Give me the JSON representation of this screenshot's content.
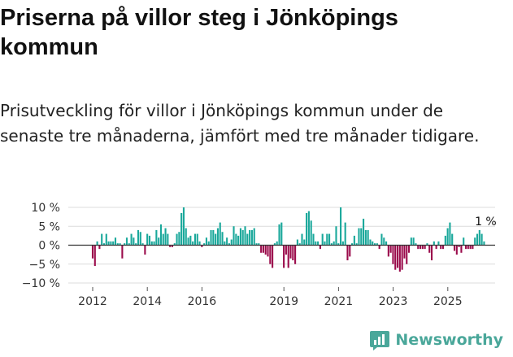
{
  "header": {
    "title": "Priserna på villor steg i Jönköpings kommun",
    "subtitle": "Prisutveckling för villor i Jönköpings kommun under de senaste tre månaderna, jämfört med tre månader tidigare."
  },
  "brand": {
    "name": "Newsworthy",
    "icon": "newsworthy-logo-icon",
    "color": "#4aa79a"
  },
  "colors": {
    "positive": "#1aa89b",
    "negative": "#9b0c4c",
    "zero_line": "#333333",
    "grid": "#dcdcdc"
  },
  "chart_data": {
    "type": "bar",
    "title": "Priserna på villor steg i Jönköpings kommun",
    "xlabel": "",
    "ylabel": "",
    "ylim": [
      -10,
      10
    ],
    "yticks": [
      10,
      5,
      0,
      -5,
      -10
    ],
    "ytick_labels": [
      "10 %",
      "5 %",
      "0 %",
      "−5 %",
      "−10 %"
    ],
    "xticks": [
      2012,
      2014,
      2016,
      2019,
      2021,
      2023,
      2025
    ],
    "xtick_labels": [
      "2012",
      "2014",
      "2016",
      "2019",
      "2021",
      "2023",
      "2025"
    ],
    "x_start": 2012.0,
    "x_step": 0.0833,
    "annotation": {
      "label": "1 %",
      "value": 1
    },
    "values": [
      -3.5,
      -5.5,
      1,
      -1,
      3,
      0.5,
      3,
      1,
      1,
      1,
      2,
      0.5,
      0.5,
      -3.5,
      0.5,
      2,
      0.5,
      3,
      2,
      0.5,
      4,
      3.5,
      0.5,
      -2.5,
      3,
      2.5,
      1,
      1,
      4,
      2,
      5.5,
      3,
      4.5,
      3,
      -0.5,
      -0.5,
      0.5,
      3,
      3.5,
      8.5,
      10,
      4.5,
      2,
      2.5,
      1,
      3,
      3,
      1,
      -0.5,
      0.5,
      2,
      1,
      4,
      4,
      3,
      4.5,
      6,
      3.5,
      1,
      2,
      0.5,
      1.5,
      5,
      3,
      2.5,
      4.5,
      4,
      5,
      3,
      4,
      4,
      4.5,
      0.5,
      0.5,
      -2,
      -2,
      -2.5,
      -3,
      -5,
      -6,
      0.5,
      1,
      5.5,
      6,
      -6,
      -2.5,
      -6,
      -3.5,
      -4,
      -5,
      1.5,
      0.5,
      3,
      1.5,
      8.5,
      9,
      6.5,
      3,
      1,
      1,
      -1,
      3,
      1,
      3,
      3,
      0.5,
      1,
      5,
      0.5,
      10,
      1,
      6,
      -4,
      -3,
      0.5,
      2.5,
      0.5,
      4.5,
      4.5,
      7,
      4,
      4,
      1.5,
      1,
      0.5,
      0.5,
      -1,
      3,
      2,
      1,
      -3,
      -2,
      -5,
      -6.5,
      -6,
      -7,
      -6.5,
      -3.5,
      -5,
      -2,
      2,
      2,
      0.5,
      -1,
      -1,
      -1,
      -1,
      0.5,
      -2,
      -4,
      1,
      -1,
      1,
      -1,
      -1,
      2.5,
      4.5,
      6,
      3,
      -1.5,
      -2.5,
      -0.5,
      -2,
      2,
      -1,
      -1,
      -1,
      -1,
      2,
      3,
      4,
      3,
      1
    ]
  }
}
